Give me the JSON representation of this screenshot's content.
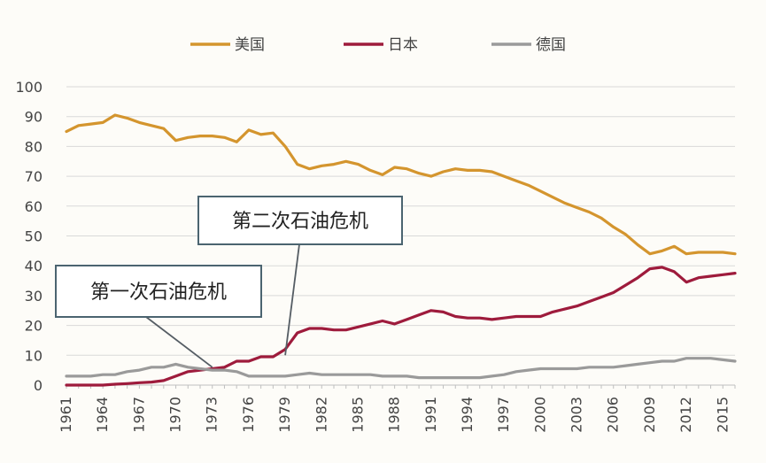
{
  "chart_data": {
    "type": "line",
    "title": "",
    "xlabel": "",
    "ylabel": "",
    "ylim": [
      0,
      100
    ],
    "yticks": [
      0,
      10,
      20,
      30,
      40,
      50,
      60,
      70,
      80,
      90,
      100
    ],
    "xlim": [
      1961,
      2016
    ],
    "xticks": [
      1961,
      1964,
      1967,
      1970,
      1973,
      1976,
      1979,
      1982,
      1985,
      1988,
      1991,
      1994,
      1997,
      2000,
      2003,
      2006,
      2009,
      2012,
      2015
    ],
    "grid": true,
    "legend_position": "top",
    "series": [
      {
        "name": "美国",
        "color": "#d4952e",
        "x": [
          1961,
          1962,
          1963,
          1964,
          1965,
          1966,
          1967,
          1968,
          1969,
          1970,
          1971,
          1972,
          1973,
          1974,
          1975,
          1976,
          1977,
          1978,
          1979,
          1980,
          1981,
          1982,
          1983,
          1984,
          1985,
          1986,
          1987,
          1988,
          1989,
          1990,
          1991,
          1992,
          1993,
          1994,
          1995,
          1996,
          1997,
          1998,
          1999,
          2000,
          2001,
          2002,
          2003,
          2004,
          2005,
          2006,
          2007,
          2008,
          2009,
          2010,
          2011,
          2012,
          2013,
          2014,
          2015,
          2016
        ],
        "values": [
          85,
          87,
          87.5,
          88,
          90.5,
          89.5,
          88,
          87,
          86,
          82,
          83,
          83.5,
          83.5,
          83,
          81.5,
          85.5,
          84,
          84.5,
          80,
          74,
          72.5,
          73.5,
          74,
          75,
          74,
          72,
          70.5,
          73,
          72.5,
          71,
          70,
          71.5,
          72.5,
          72,
          72,
          71.5,
          70,
          68.5,
          67,
          65,
          63,
          61,
          59.5,
          58,
          56,
          53,
          50.5,
          47,
          44,
          45,
          46.5,
          44,
          44.5,
          44.5,
          44.5,
          44
        ]
      },
      {
        "name": "日本",
        "color": "#9e1b3c",
        "x": [
          1961,
          1962,
          1963,
          1964,
          1965,
          1966,
          1967,
          1968,
          1969,
          1970,
          1971,
          1972,
          1973,
          1974,
          1975,
          1976,
          1977,
          1978,
          1979,
          1980,
          1981,
          1982,
          1983,
          1984,
          1985,
          1986,
          1987,
          1988,
          1989,
          1990,
          1991,
          1992,
          1993,
          1994,
          1995,
          1996,
          1997,
          1998,
          1999,
          2000,
          2001,
          2002,
          2003,
          2004,
          2005,
          2006,
          2007,
          2008,
          2009,
          2010,
          2011,
          2012,
          2013,
          2014,
          2015,
          2016
        ],
        "values": [
          0,
          0,
          0,
          0,
          0.3,
          0.5,
          0.8,
          1,
          1.5,
          3,
          4.5,
          5,
          5.5,
          6,
          8,
          8,
          9.5,
          9.5,
          12,
          17.5,
          19,
          19,
          18.5,
          18.5,
          19.5,
          20.5,
          21.5,
          20.5,
          22,
          23.5,
          25,
          24.5,
          23,
          22.5,
          22.5,
          22,
          22.5,
          23,
          23,
          23,
          24.5,
          25.5,
          26.5,
          28,
          29.5,
          31,
          33.5,
          36,
          39,
          39.5,
          38,
          34.5,
          36,
          36.5,
          37,
          37.5
        ]
      },
      {
        "name": "德国",
        "color": "#9a9a9a",
        "x": [
          1961,
          1962,
          1963,
          1964,
          1965,
          1966,
          1967,
          1968,
          1969,
          1970,
          1971,
          1972,
          1973,
          1974,
          1975,
          1976,
          1977,
          1978,
          1979,
          1980,
          1981,
          1982,
          1983,
          1984,
          1985,
          1986,
          1987,
          1988,
          1989,
          1990,
          1991,
          1992,
          1993,
          1994,
          1995,
          1996,
          1997,
          1998,
          1999,
          2000,
          2001,
          2002,
          2003,
          2004,
          2005,
          2006,
          2007,
          2008,
          2009,
          2010,
          2011,
          2012,
          2013,
          2014,
          2015,
          2016
        ],
        "values": [
          3,
          3,
          3,
          3.5,
          3.5,
          4.5,
          5,
          6,
          6,
          7,
          6,
          5.5,
          5,
          5,
          4.5,
          3,
          3,
          3,
          3,
          3.5,
          4,
          3.5,
          3.5,
          3.5,
          3.5,
          3.5,
          3,
          3,
          3,
          2.5,
          2.5,
          2.5,
          2.5,
          2.5,
          2.5,
          3,
          3.5,
          4.5,
          5,
          5.5,
          5.5,
          5.5,
          5.5,
          6,
          6,
          6,
          6.5,
          7,
          7.5,
          8,
          8,
          9,
          9,
          9,
          8.5,
          8
        ]
      }
    ],
    "annotations": [
      {
        "label": "第二次石油危机",
        "target_x": 1979,
        "target_y": 10
      },
      {
        "label": "第一次石油危机",
        "target_x": 1973,
        "target_y": 6
      }
    ]
  }
}
